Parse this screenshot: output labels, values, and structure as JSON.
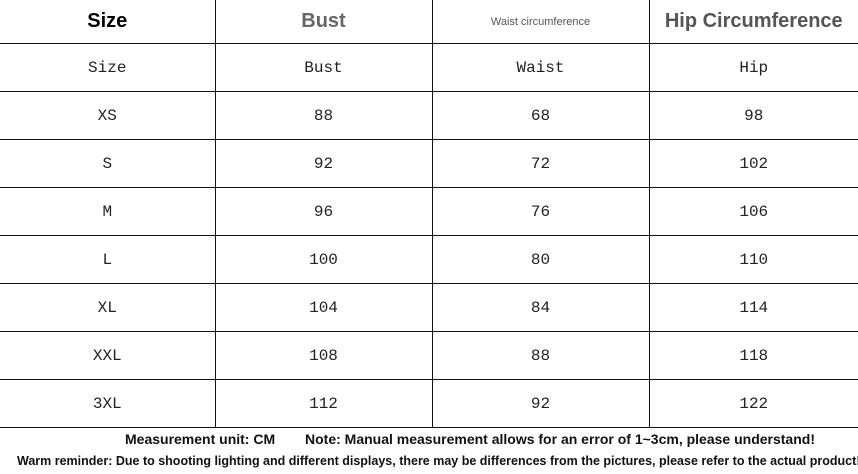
{
  "table": {
    "title_headers": [
      "Size",
      "Bust",
      "Waist circumference",
      "Hip Circumference"
    ],
    "column_headers": [
      "Size",
      "Bust",
      "Waist",
      "Hip"
    ],
    "rows": [
      [
        "XS",
        "88",
        "68",
        "98"
      ],
      [
        "S",
        "92",
        "72",
        "102"
      ],
      [
        "M",
        "96",
        "76",
        "106"
      ],
      [
        "L",
        "100",
        "80",
        "110"
      ],
      [
        "XL",
        "104",
        "84",
        "114"
      ],
      [
        "XXL",
        "108",
        "88",
        "118"
      ],
      [
        "3XL",
        "112",
        "92",
        "122"
      ]
    ]
  },
  "notes": {
    "unit": "Measurement unit: CM",
    "note": "Note: Manual measurement allows for an error of 1~3cm, please understand!",
    "reminder": "Warm reminder: Due to shooting lighting and different displays, there may be differences from the pictures, please refer to the actual product!"
  }
}
